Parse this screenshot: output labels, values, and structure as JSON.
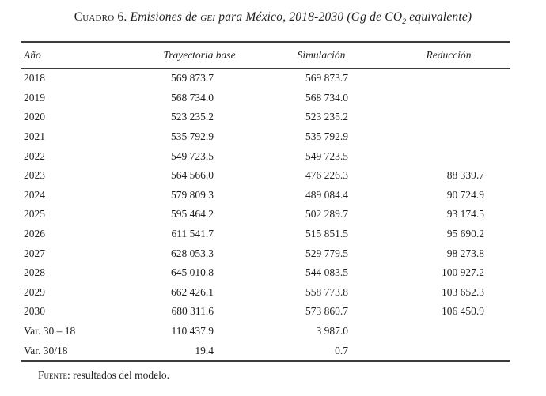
{
  "colors": {
    "background": "#ffffff",
    "text": "#1f1f1f",
    "rule": "#3b3b3b"
  },
  "title": {
    "label": "Cuadro 6.",
    "italic_1": " Emisiones de ",
    "gei": "gei",
    "italic_2": " para México, 2018-2030 (Gg de CO",
    "subscript": "2",
    "italic_3": " equivalente)"
  },
  "table": {
    "columns": [
      "Año",
      "Trayectoria base",
      "Simulación",
      "Reducción"
    ],
    "rows": [
      {
        "year": "2018",
        "base": "569 873.7",
        "sim": "569 873.7",
        "red": ""
      },
      {
        "year": "2019",
        "base": "568 734.0",
        "sim": "568 734.0",
        "red": ""
      },
      {
        "year": "2020",
        "base": "523 235.2",
        "sim": "523 235.2",
        "red": ""
      },
      {
        "year": "2021",
        "base": "535 792.9",
        "sim": "535 792.9",
        "red": ""
      },
      {
        "year": "2022",
        "base": "549 723.5",
        "sim": "549 723.5",
        "red": ""
      },
      {
        "year": "2023",
        "base": "564 566.0",
        "sim": "476 226.3",
        "red": "88 339.7"
      },
      {
        "year": "2024",
        "base": "579 809.3",
        "sim": "489 084.4",
        "red": "90 724.9"
      },
      {
        "year": "2025",
        "base": "595 464.2",
        "sim": "502 289.7",
        "red": "93 174.5"
      },
      {
        "year": "2026",
        "base": "611 541.7",
        "sim": "515 851.5",
        "red": "95 690.2"
      },
      {
        "year": "2027",
        "base": "628 053.3",
        "sim": "529 779.5",
        "red": "98 273.8"
      },
      {
        "year": "2028",
        "base": "645 010.8",
        "sim": "544 083.5",
        "red": "100 927.2"
      },
      {
        "year": "2029",
        "base": "662 426.1",
        "sim": "558 773.8",
        "red": "103 652.3"
      },
      {
        "year": "2030",
        "base": "680 311.6",
        "sim": "573 860.7",
        "red": "106 450.9"
      },
      {
        "year": "Var. 30 – 18",
        "base": "110 437.9",
        "sim": "3 987.0",
        "red": ""
      },
      {
        "year": "Var. 30/18",
        "base": "19.4",
        "sim": "0.7",
        "red": ""
      }
    ]
  },
  "source": {
    "label": "Fuente",
    "text": ": resultados del modelo."
  }
}
